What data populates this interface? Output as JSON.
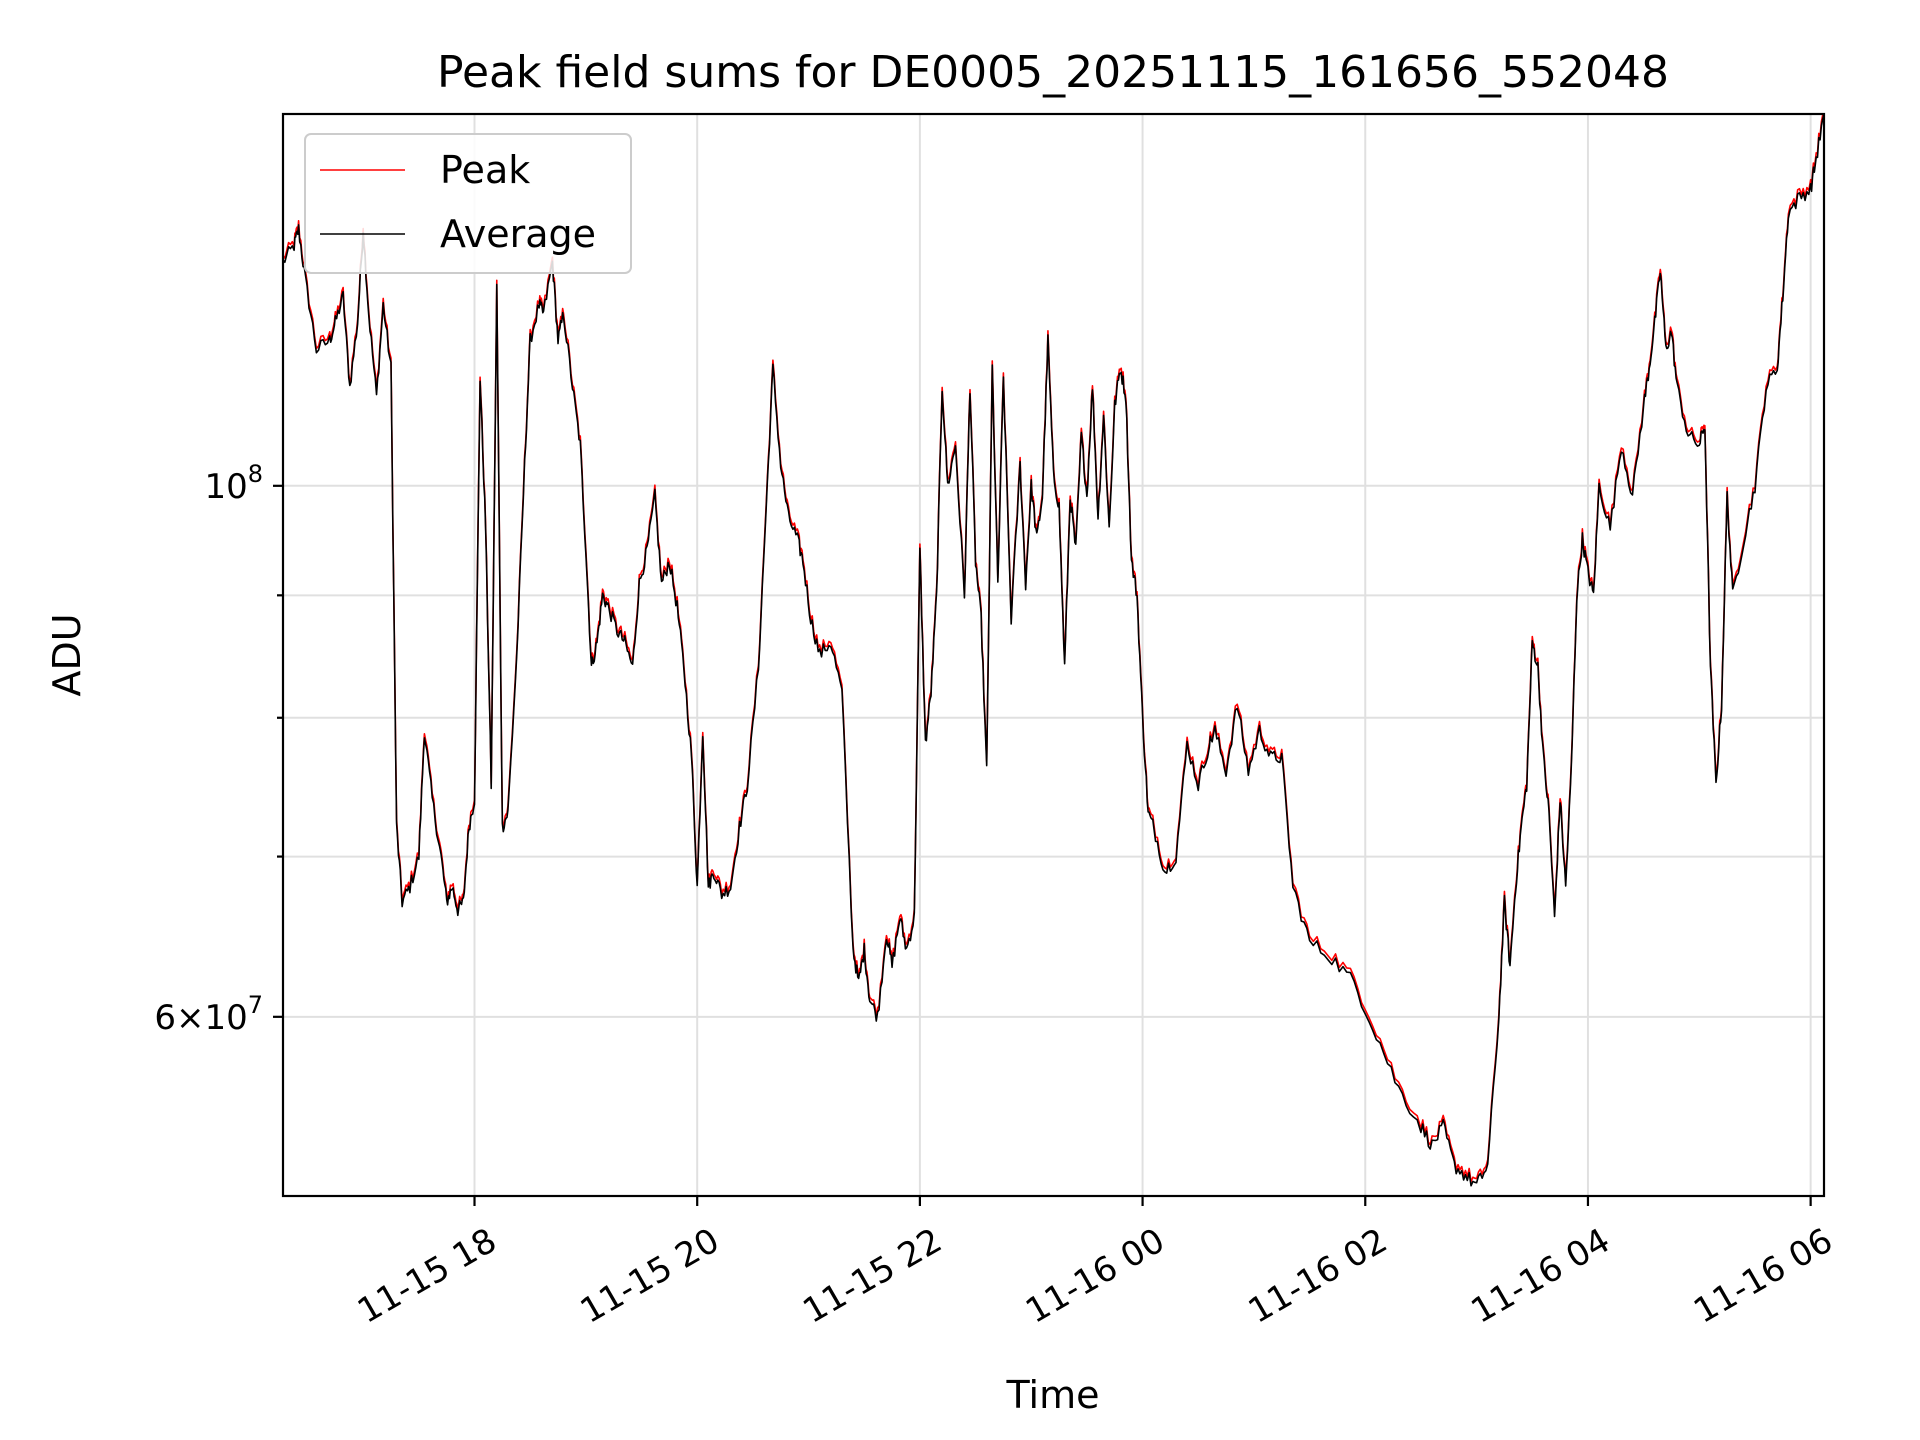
{
  "chart_data": {
    "type": "line",
    "title": "Peak field sums for DE0005_20251115_161656_552048",
    "xlabel": "Time",
    "ylabel": "ADU",
    "yscale": "log",
    "grid": true,
    "legend_position": "top-left",
    "x_unit": "hours since 2025-11-15 00:00",
    "xlim": [
      16.28,
      30.12
    ],
    "ylim": [
      50500000,
      143000000
    ],
    "x_ticks": [
      {
        "x": 18,
        "label": "11-15 18"
      },
      {
        "x": 20,
        "label": "11-15 20"
      },
      {
        "x": 22,
        "label": "11-15 22"
      },
      {
        "x": 24,
        "label": "11-16 00"
      },
      {
        "x": 26,
        "label": "11-16 02"
      },
      {
        "x": 28,
        "label": "11-16 04"
      },
      {
        "x": 30,
        "label": "11-16 06"
      }
    ],
    "y_major_ticks": [
      {
        "y": 60000000,
        "mantissa": "6",
        "exponent": "7"
      },
      {
        "y": 100000000,
        "mantissa": "",
        "exponent": "8"
      }
    ],
    "y_minor_ticks": [
      70000000,
      80000000,
      90000000
    ],
    "series": [
      {
        "name": "Peak",
        "color": "#ff0000",
        "offset_factor": 1.004
      },
      {
        "name": "Average",
        "color": "#000000",
        "offset_factor": 1.0
      }
    ],
    "x": [
      16.28,
      16.38,
      16.42,
      16.48,
      16.58,
      16.7,
      16.75,
      16.82,
      16.88,
      16.95,
      17.0,
      17.05,
      17.12,
      17.18,
      17.25,
      17.3,
      17.35,
      17.42,
      17.5,
      17.55,
      17.62,
      17.7,
      17.75,
      17.8,
      17.85,
      17.9,
      17.95,
      18.0,
      18.05,
      18.1,
      18.15,
      18.2,
      18.25,
      18.3,
      18.38,
      18.45,
      18.5,
      18.58,
      18.62,
      18.7,
      18.75,
      18.8,
      18.88,
      18.95,
      19.0,
      19.05,
      19.1,
      19.15,
      19.2,
      19.28,
      19.35,
      19.42,
      19.48,
      19.55,
      19.62,
      19.68,
      19.75,
      19.82,
      19.88,
      19.95,
      20.0,
      20.05,
      20.1,
      20.15,
      20.22,
      20.3,
      20.38,
      20.45,
      20.55,
      20.62,
      20.68,
      20.75,
      20.82,
      20.9,
      20.95,
      21.02,
      21.1,
      21.2,
      21.3,
      21.4,
      21.45,
      21.5,
      21.55,
      21.62,
      21.7,
      21.75,
      21.82,
      21.88,
      21.95,
      22.0,
      22.05,
      22.1,
      22.15,
      22.2,
      22.25,
      22.32,
      22.4,
      22.45,
      22.5,
      22.55,
      22.6,
      22.65,
      22.7,
      22.75,
      22.82,
      22.9,
      22.95,
      23.0,
      23.05,
      23.1,
      23.15,
      23.2,
      23.25,
      23.3,
      23.35,
      23.4,
      23.45,
      23.5,
      23.55,
      23.6,
      23.65,
      23.7,
      23.75,
      23.8,
      23.85,
      23.9,
      23.95,
      24.0,
      24.05,
      24.1,
      24.2,
      24.3,
      24.4,
      24.5,
      24.6,
      24.65,
      24.75,
      24.85,
      24.95,
      25.05,
      25.15,
      25.25,
      25.35,
      25.5,
      25.7,
      25.9,
      26.1,
      26.3,
      26.5,
      26.6,
      26.7,
      26.8,
      26.9,
      27.0,
      27.1,
      27.2,
      27.25,
      27.3,
      27.35,
      27.4,
      27.45,
      27.5,
      27.55,
      27.6,
      27.65,
      27.7,
      27.75,
      27.8,
      27.85,
      27.9,
      27.95,
      28.0,
      28.05,
      28.1,
      28.2,
      28.3,
      28.4,
      28.5,
      28.55,
      28.6,
      28.65,
      28.7,
      28.75,
      28.8,
      28.9,
      29.0,
      29.05,
      29.1,
      29.15,
      29.2,
      29.25,
      29.3,
      29.4,
      29.5,
      29.6,
      29.7,
      29.75,
      29.8,
      29.9,
      30.0,
      30.05,
      30.12
    ],
    "values": [
      124000000,
      126000000,
      128000000,
      122000000,
      114000000,
      115000000,
      117000000,
      120000000,
      110000000,
      117000000,
      128000000,
      118000000,
      109000000,
      119000000,
      112000000,
      72000000,
      67000000,
      68000000,
      70000000,
      79000000,
      74000000,
      70000000,
      67000000,
      68000000,
      66500000,
      67000000,
      72000000,
      74000000,
      111000000,
      96000000,
      75000000,
      121000000,
      72000000,
      73000000,
      85000000,
      102000000,
      115000000,
      119000000,
      118000000,
      124000000,
      115000000,
      118000000,
      110000000,
      104000000,
      94000000,
      84000000,
      86000000,
      90000000,
      89000000,
      87000000,
      86000000,
      84000000,
      91000000,
      94000000,
      99000000,
      91000000,
      93000000,
      89000000,
      84000000,
      77000000,
      68000000,
      79000000,
      68000000,
      69000000,
      67500000,
      68000000,
      72000000,
      75000000,
      84000000,
      98000000,
      112000000,
      102000000,
      97000000,
      95000000,
      93000000,
      88000000,
      85000000,
      86000000,
      82000000,
      64000000,
      62000000,
      64000000,
      61000000,
      60000000,
      65000000,
      63000000,
      66000000,
      64000000,
      66000000,
      94000000,
      78000000,
      82000000,
      90000000,
      110000000,
      100000000,
      104000000,
      90000000,
      110000000,
      93000000,
      88000000,
      76000000,
      112000000,
      91000000,
      111000000,
      88000000,
      102000000,
      91000000,
      100000000,
      95000000,
      99000000,
      115000000,
      101000000,
      98000000,
      84000000,
      99000000,
      94000000,
      105000000,
      99000000,
      110000000,
      97000000,
      107000000,
      96000000,
      108000000,
      112000000,
      109000000,
      93000000,
      90000000,
      80000000,
      73000000,
      72000000,
      69000000,
      70000000,
      78000000,
      75000000,
      78000000,
      79000000,
      76000000,
      81000000,
      76000000,
      79000000,
      77000000,
      77000000,
      68000000,
      64500000,
      63500000,
      62000000,
      59000000,
      56000000,
      54000000,
      53000000,
      54000000,
      52000000,
      51500000,
      51000000,
      52000000,
      60000000,
      67000000,
      63000000,
      68000000,
      72000000,
      75000000,
      86000000,
      84000000,
      77000000,
      73000000,
      66000000,
      74000000,
      68000000,
      76000000,
      90000000,
      95000000,
      92000000,
      90000000,
      100000000,
      96000000,
      104000000,
      99000000,
      108000000,
      112000000,
      117000000,
      123000000,
      114000000,
      116000000,
      110000000,
      105000000,
      104000000,
      106000000,
      84000000,
      75000000,
      81000000,
      99000000,
      90000000,
      95000000,
      100000000,
      110000000,
      112000000,
      120000000,
      130000000,
      132000000,
      133000000,
      137000000,
      143000000
    ]
  }
}
